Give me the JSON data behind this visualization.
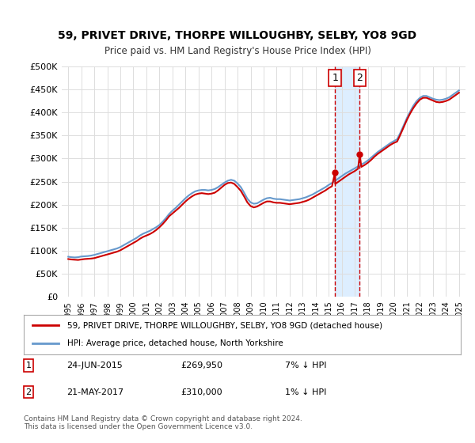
{
  "title": "59, PRIVET DRIVE, THORPE WILLOUGHBY, SELBY, YO8 9GD",
  "subtitle": "Price paid vs. HM Land Registry's House Price Index (HPI)",
  "ylabel_ticks": [
    "£0",
    "£50K",
    "£100K",
    "£150K",
    "£200K",
    "£250K",
    "£300K",
    "£350K",
    "£400K",
    "£450K",
    "£500K"
  ],
  "ytick_values": [
    0,
    50000,
    100000,
    150000,
    200000,
    250000,
    300000,
    350000,
    400000,
    450000,
    500000
  ],
  "ylim": [
    0,
    500000
  ],
  "xlim_start": 1994.5,
  "xlim_end": 2025.5,
  "sale1_date": 2015.48,
  "sale1_price": 269950,
  "sale1_label": "1",
  "sale2_date": 2017.38,
  "sale2_price": 310000,
  "sale2_label": "2",
  "legend_line1": "59, PRIVET DRIVE, THORPE WILLOUGHBY, SELBY, YO8 9GD (detached house)",
  "legend_line2": "HPI: Average price, detached house, North Yorkshire",
  "table_row1": [
    "1",
    "24-JUN-2015",
    "£269,950",
    "7% ↓ HPI"
  ],
  "table_row2": [
    "2",
    "21-MAY-2017",
    "£310,000",
    "1% ↓ HPI"
  ],
  "footnote": "Contains HM Land Registry data © Crown copyright and database right 2024.\nThis data is licensed under the Open Government Licence v3.0.",
  "line_color_red": "#cc0000",
  "line_color_blue": "#6699cc",
  "shade_color": "#ddeeff",
  "vline_color": "#cc0000",
  "background_color": "#ffffff",
  "grid_color": "#dddddd",
  "hpi_data_x": [
    1995.0,
    1995.25,
    1995.5,
    1995.75,
    1996.0,
    1996.25,
    1996.5,
    1996.75,
    1997.0,
    1997.25,
    1997.5,
    1997.75,
    1998.0,
    1998.25,
    1998.5,
    1998.75,
    1999.0,
    1999.25,
    1999.5,
    1999.75,
    2000.0,
    2000.25,
    2000.5,
    2000.75,
    2001.0,
    2001.25,
    2001.5,
    2001.75,
    2002.0,
    2002.25,
    2002.5,
    2002.75,
    2003.0,
    2003.25,
    2003.5,
    2003.75,
    2004.0,
    2004.25,
    2004.5,
    2004.75,
    2005.0,
    2005.25,
    2005.5,
    2005.75,
    2006.0,
    2006.25,
    2006.5,
    2006.75,
    2007.0,
    2007.25,
    2007.5,
    2007.75,
    2008.0,
    2008.25,
    2008.5,
    2008.75,
    2009.0,
    2009.25,
    2009.5,
    2009.75,
    2010.0,
    2010.25,
    2010.5,
    2010.75,
    2011.0,
    2011.25,
    2011.5,
    2011.75,
    2012.0,
    2012.25,
    2012.5,
    2012.75,
    2013.0,
    2013.25,
    2013.5,
    2013.75,
    2014.0,
    2014.25,
    2014.5,
    2014.75,
    2015.0,
    2015.25,
    2015.5,
    2015.75,
    2016.0,
    2016.25,
    2016.5,
    2016.75,
    2017.0,
    2017.25,
    2017.5,
    2017.75,
    2018.0,
    2018.25,
    2018.5,
    2018.75,
    2019.0,
    2019.25,
    2019.5,
    2019.75,
    2020.0,
    2020.25,
    2020.5,
    2020.75,
    2021.0,
    2021.25,
    2021.5,
    2021.75,
    2022.0,
    2022.25,
    2022.5,
    2022.75,
    2023.0,
    2023.25,
    2023.5,
    2023.75,
    2024.0,
    2024.25,
    2024.5,
    2024.75,
    2025.0
  ],
  "hpi_data_y": [
    87000,
    86000,
    85500,
    86000,
    87500,
    88000,
    88500,
    89500,
    91000,
    93000,
    95000,
    97000,
    99000,
    101000,
    103000,
    105000,
    108000,
    112000,
    116000,
    120000,
    124000,
    128000,
    133000,
    137000,
    140000,
    143000,
    147000,
    151000,
    156000,
    163000,
    171000,
    180000,
    187000,
    193000,
    200000,
    207000,
    214000,
    220000,
    225000,
    229000,
    231000,
    232000,
    232000,
    231000,
    232000,
    234000,
    238000,
    243000,
    248000,
    252000,
    254000,
    252000,
    246000,
    238000,
    226000,
    213000,
    205000,
    202000,
    203000,
    207000,
    211000,
    214000,
    215000,
    213000,
    212000,
    212000,
    211000,
    210000,
    209000,
    210000,
    211000,
    212000,
    214000,
    216000,
    219000,
    222000,
    226000,
    230000,
    234000,
    238000,
    243000,
    247000,
    252000,
    257000,
    262000,
    267000,
    271000,
    275000,
    279000,
    283000,
    287000,
    291000,
    296000,
    302000,
    308000,
    314000,
    319000,
    324000,
    329000,
    334000,
    338000,
    342000,
    356000,
    372000,
    388000,
    402000,
    415000,
    425000,
    432000,
    436000,
    436000,
    433000,
    430000,
    428000,
    427000,
    428000,
    430000,
    433000,
    438000,
    443000,
    448000
  ],
  "price_data_x": [
    1995.0,
    1995.25,
    1995.5,
    1995.75,
    1996.0,
    1996.25,
    1996.5,
    1996.75,
    1997.0,
    1997.25,
    1997.5,
    1997.75,
    1998.0,
    1998.25,
    1998.5,
    1998.75,
    1999.0,
    1999.25,
    1999.5,
    1999.75,
    2000.0,
    2000.25,
    2000.5,
    2000.75,
    2001.0,
    2001.25,
    2001.5,
    2001.75,
    2002.0,
    2002.25,
    2002.5,
    2002.75,
    2003.0,
    2003.25,
    2003.5,
    2003.75,
    2004.0,
    2004.25,
    2004.5,
    2004.75,
    2005.0,
    2005.25,
    2005.5,
    2005.75,
    2006.0,
    2006.25,
    2006.5,
    2006.75,
    2007.0,
    2007.25,
    2007.5,
    2007.75,
    2008.0,
    2008.25,
    2008.5,
    2008.75,
    2009.0,
    2009.25,
    2009.5,
    2009.75,
    2010.0,
    2010.25,
    2010.5,
    2010.75,
    2011.0,
    2011.25,
    2011.5,
    2011.75,
    2012.0,
    2012.25,
    2012.5,
    2012.75,
    2013.0,
    2013.25,
    2013.5,
    2013.75,
    2014.0,
    2014.25,
    2014.5,
    2014.75,
    2015.0,
    2015.25,
    2015.48,
    2015.5,
    2015.75,
    2016.0,
    2016.25,
    2016.5,
    2016.75,
    2017.0,
    2017.25,
    2017.38,
    2017.5,
    2017.75,
    2018.0,
    2018.25,
    2018.5,
    2018.75,
    2019.0,
    2019.25,
    2019.5,
    2019.75,
    2020.0,
    2020.25,
    2020.5,
    2020.75,
    2021.0,
    2021.25,
    2021.5,
    2021.75,
    2022.0,
    2022.25,
    2022.5,
    2022.75,
    2023.0,
    2023.25,
    2023.5,
    2023.75,
    2024.0,
    2024.25,
    2024.5,
    2024.75,
    2025.0
  ],
  "price_data_y": [
    82000,
    81000,
    80500,
    80000,
    81000,
    82000,
    82500,
    83000,
    84000,
    86000,
    88000,
    90000,
    92000,
    94000,
    96000,
    98000,
    101000,
    105000,
    109000,
    113000,
    117000,
    121000,
    126000,
    130000,
    133000,
    136000,
    140000,
    145000,
    151000,
    158000,
    166000,
    175000,
    181000,
    187000,
    193000,
    200000,
    207000,
    213000,
    218000,
    222000,
    224000,
    225000,
    224000,
    223000,
    224000,
    226000,
    231000,
    237000,
    243000,
    247000,
    248000,
    245000,
    238000,
    230000,
    218000,
    205000,
    197000,
    194000,
    196000,
    200000,
    204000,
    207000,
    207000,
    205000,
    204000,
    204000,
    203000,
    202000,
    201000,
    202000,
    203000,
    204000,
    206000,
    208000,
    211000,
    215000,
    219000,
    223000,
    227000,
    231000,
    236000,
    240000,
    269950,
    245000,
    250000,
    255000,
    260000,
    265000,
    269000,
    273000,
    278000,
    310000,
    282000,
    286000,
    291000,
    297000,
    304000,
    310000,
    315000,
    320000,
    325000,
    330000,
    334000,
    337000,
    352000,
    368000,
    384000,
    398000,
    410000,
    420000,
    428000,
    432000,
    432000,
    429000,
    426000,
    423000,
    422000,
    423000,
    425000,
    428000,
    433000,
    438000,
    443000
  ]
}
